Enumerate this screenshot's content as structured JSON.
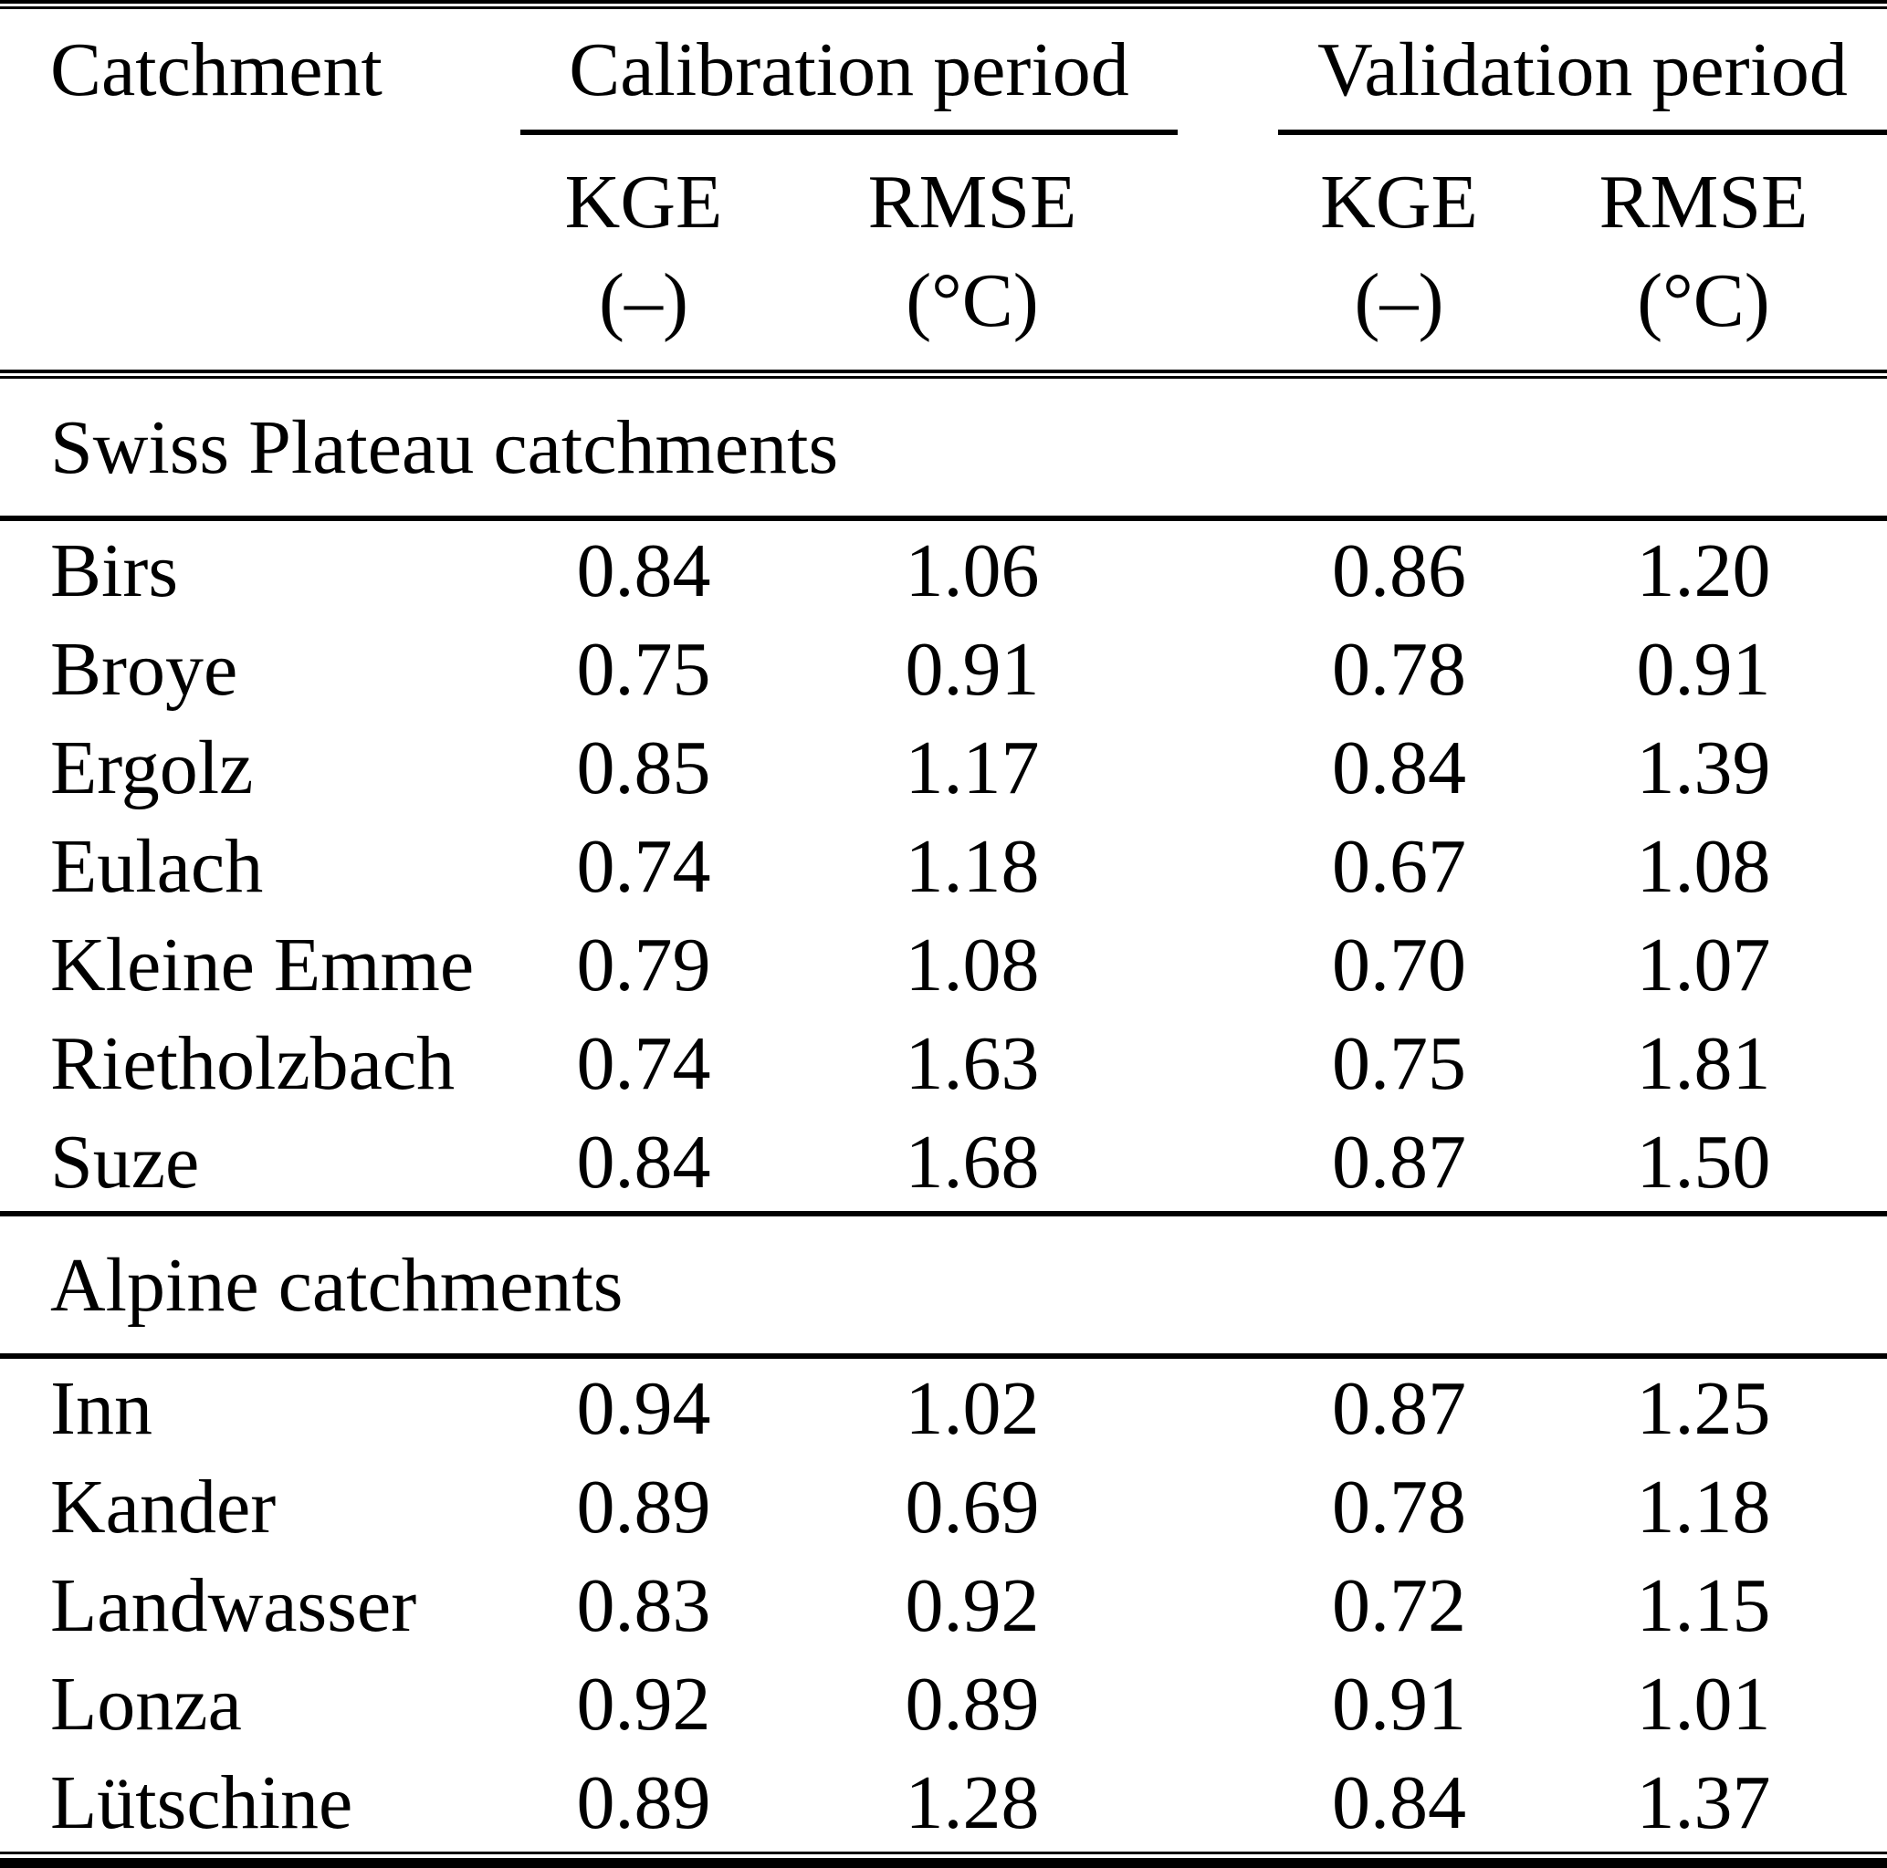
{
  "table": {
    "header": {
      "catchment_label": "Catchment",
      "groups": [
        {
          "label": "Calibration period",
          "sub": [
            {
              "name": "KGE",
              "unit": "(–)"
            },
            {
              "name": "RMSE",
              "unit": "(°C)"
            }
          ]
        },
        {
          "label": "Validation period",
          "sub": [
            {
              "name": "KGE",
              "unit": "(–)"
            },
            {
              "name": "RMSE",
              "unit": "(°C)"
            }
          ]
        }
      ]
    },
    "sections": [
      {
        "title": "Swiss Plateau catchments",
        "rows": [
          {
            "name": "Birs",
            "values": [
              "0.84",
              "1.06",
              "0.86",
              "1.20"
            ]
          },
          {
            "name": "Broye",
            "values": [
              "0.75",
              "0.91",
              "0.78",
              "0.91"
            ]
          },
          {
            "name": "Ergolz",
            "values": [
              "0.85",
              "1.17",
              "0.84",
              "1.39"
            ]
          },
          {
            "name": "Eulach",
            "values": [
              "0.74",
              "1.18",
              "0.67",
              "1.08"
            ]
          },
          {
            "name": "Kleine Emme",
            "values": [
              "0.79",
              "1.08",
              "0.70",
              "1.07"
            ]
          },
          {
            "name": "Rietholzbach",
            "values": [
              "0.74",
              "1.63",
              "0.75",
              "1.81"
            ]
          },
          {
            "name": "Suze",
            "values": [
              "0.84",
              "1.68",
              "0.87",
              "1.50"
            ]
          }
        ]
      },
      {
        "title": "Alpine catchments",
        "rows": [
          {
            "name": "Inn",
            "values": [
              "0.94",
              "1.02",
              "0.87",
              "1.25"
            ]
          },
          {
            "name": "Kander",
            "values": [
              "0.89",
              "0.69",
              "0.78",
              "1.18"
            ]
          },
          {
            "name": "Landwasser",
            "values": [
              "0.83",
              "0.92",
              "0.72",
              "1.15"
            ]
          },
          {
            "name": "Lonza",
            "values": [
              "0.92",
              "0.89",
              "0.91",
              "1.01"
            ]
          },
          {
            "name": "Lütschine",
            "values": [
              "0.89",
              "1.28",
              "0.84",
              "1.37"
            ]
          }
        ]
      }
    ],
    "colors": {
      "text": "#000000",
      "background": "#ffffff",
      "rule": "#000000"
    }
  }
}
